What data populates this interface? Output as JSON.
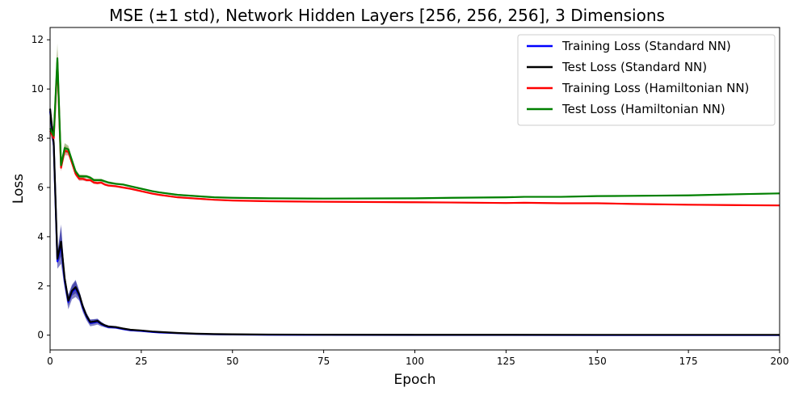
{
  "chart_data": {
    "type": "line",
    "title": "MSE (±1 std), Network Hidden Layers [256, 256, 256], 3 Dimensions",
    "xlabel": "Epoch",
    "ylabel": "Loss",
    "xlim": [
      0,
      200
    ],
    "ylim": [
      -0.6,
      12.5
    ],
    "xticks": [
      0,
      25,
      50,
      75,
      100,
      125,
      150,
      175,
      200
    ],
    "yticks": [
      0,
      2,
      4,
      6,
      8,
      10,
      12
    ],
    "grid": false,
    "legend_position": "top-right",
    "series": [
      {
        "name": "Training Loss (Standard NN)",
        "color": "#0000ff",
        "band_color": "#1f1f99",
        "points": [
          [
            0,
            9.1
          ],
          [
            1,
            7.7
          ],
          [
            2,
            3.0
          ],
          [
            3,
            3.7
          ],
          [
            4,
            2.2
          ],
          [
            5,
            1.35
          ],
          [
            6,
            1.75
          ],
          [
            7,
            1.9
          ],
          [
            8,
            1.6
          ],
          [
            9,
            1.1
          ],
          [
            10,
            0.75
          ],
          [
            11,
            0.5
          ],
          [
            12,
            0.52
          ],
          [
            13,
            0.55
          ],
          [
            14,
            0.45
          ],
          [
            15,
            0.38
          ],
          [
            16,
            0.33
          ],
          [
            18,
            0.31
          ],
          [
            20,
            0.25
          ],
          [
            22,
            0.2
          ],
          [
            25,
            0.17
          ],
          [
            28,
            0.13
          ],
          [
            30,
            0.11
          ],
          [
            35,
            0.08
          ],
          [
            40,
            0.05
          ],
          [
            45,
            0.035
          ],
          [
            50,
            0.025
          ],
          [
            60,
            0.015
          ],
          [
            75,
            0.01
          ],
          [
            100,
            0.006
          ],
          [
            125,
            0.005
          ],
          [
            150,
            0.004
          ],
          [
            175,
            0.004
          ],
          [
            200,
            0.004
          ]
        ],
        "std": [
          [
            0,
            0.3
          ],
          [
            2,
            0.3
          ],
          [
            3,
            0.8
          ],
          [
            4,
            0.3
          ],
          [
            6,
            0.3
          ],
          [
            7,
            0.35
          ],
          [
            8,
            0.2
          ],
          [
            10,
            0.15
          ],
          [
            13,
            0.12
          ],
          [
            15,
            0.06
          ],
          [
            20,
            0.04
          ],
          [
            30,
            0.02
          ],
          [
            50,
            0.01
          ],
          [
            200,
            0.005
          ]
        ]
      },
      {
        "name": "Test Loss (Standard NN)",
        "color": "#000000",
        "band_color": "#1f1f99",
        "points": [
          [
            0,
            9.2
          ],
          [
            1,
            7.8
          ],
          [
            2,
            3.1
          ],
          [
            3,
            3.8
          ],
          [
            4,
            2.3
          ],
          [
            5,
            1.4
          ],
          [
            6,
            1.8
          ],
          [
            7,
            1.95
          ],
          [
            8,
            1.65
          ],
          [
            9,
            1.15
          ],
          [
            10,
            0.78
          ],
          [
            11,
            0.53
          ],
          [
            12,
            0.55
          ],
          [
            13,
            0.58
          ],
          [
            14,
            0.47
          ],
          [
            15,
            0.4
          ],
          [
            16,
            0.35
          ],
          [
            18,
            0.33
          ],
          [
            20,
            0.27
          ],
          [
            22,
            0.22
          ],
          [
            25,
            0.19
          ],
          [
            28,
            0.15
          ],
          [
            30,
            0.13
          ],
          [
            35,
            0.09
          ],
          [
            40,
            0.06
          ],
          [
            45,
            0.045
          ],
          [
            50,
            0.035
          ],
          [
            60,
            0.025
          ],
          [
            75,
            0.02
          ],
          [
            100,
            0.015
          ],
          [
            125,
            0.015
          ],
          [
            150,
            0.014
          ],
          [
            175,
            0.014
          ],
          [
            200,
            0.014
          ]
        ],
        "std": [
          [
            0,
            0.2
          ],
          [
            2,
            0.2
          ],
          [
            3,
            0.6
          ],
          [
            4,
            0.2
          ],
          [
            6,
            0.2
          ],
          [
            7,
            0.25
          ],
          [
            8,
            0.15
          ],
          [
            10,
            0.1
          ],
          [
            13,
            0.08
          ],
          [
            15,
            0.05
          ],
          [
            20,
            0.03
          ],
          [
            30,
            0.02
          ],
          [
            50,
            0.01
          ],
          [
            200,
            0.005
          ]
        ]
      },
      {
        "name": "Training Loss (Hamiltonian NN)",
        "color": "#ff0000",
        "band_color": "#cc6666",
        "points": [
          [
            0,
            8.3
          ],
          [
            1,
            8.0
          ],
          [
            2,
            11.1
          ],
          [
            3,
            6.8
          ],
          [
            4,
            7.5
          ],
          [
            5,
            7.45
          ],
          [
            6,
            7.0
          ],
          [
            7,
            6.55
          ],
          [
            8,
            6.35
          ],
          [
            9,
            6.35
          ],
          [
            10,
            6.3
          ],
          [
            11,
            6.3
          ],
          [
            12,
            6.2
          ],
          [
            13,
            6.18
          ],
          [
            14,
            6.2
          ],
          [
            15,
            6.12
          ],
          [
            16,
            6.08
          ],
          [
            18,
            6.05
          ],
          [
            20,
            6.0
          ],
          [
            22,
            5.95
          ],
          [
            25,
            5.85
          ],
          [
            28,
            5.75
          ],
          [
            30,
            5.7
          ],
          [
            35,
            5.6
          ],
          [
            40,
            5.55
          ],
          [
            45,
            5.5
          ],
          [
            50,
            5.47
          ],
          [
            60,
            5.44
          ],
          [
            75,
            5.42
          ],
          [
            100,
            5.4
          ],
          [
            110,
            5.39
          ],
          [
            125,
            5.37
          ],
          [
            130,
            5.38
          ],
          [
            140,
            5.36
          ],
          [
            150,
            5.36
          ],
          [
            160,
            5.33
          ],
          [
            175,
            5.3
          ],
          [
            190,
            5.28
          ],
          [
            200,
            5.27
          ]
        ],
        "std": [
          [
            0,
            0.15
          ],
          [
            2,
            0.5
          ],
          [
            3,
            0.15
          ],
          [
            4,
            0.2
          ],
          [
            6,
            0.1
          ],
          [
            10,
            0.06
          ],
          [
            20,
            0.04
          ],
          [
            50,
            0.03
          ],
          [
            200,
            0.03
          ]
        ]
      },
      {
        "name": "Test Loss (Hamiltonian NN)",
        "color": "#008000",
        "band_color": "#6b8f3a",
        "points": [
          [
            0,
            8.4
          ],
          [
            1,
            8.1
          ],
          [
            2,
            11.25
          ],
          [
            3,
            6.9
          ],
          [
            4,
            7.6
          ],
          [
            5,
            7.55
          ],
          [
            6,
            7.1
          ],
          [
            7,
            6.65
          ],
          [
            8,
            6.45
          ],
          [
            9,
            6.45
          ],
          [
            10,
            6.45
          ],
          [
            11,
            6.4
          ],
          [
            12,
            6.3
          ],
          [
            13,
            6.3
          ],
          [
            14,
            6.3
          ],
          [
            15,
            6.25
          ],
          [
            16,
            6.2
          ],
          [
            18,
            6.15
          ],
          [
            20,
            6.12
          ],
          [
            22,
            6.05
          ],
          [
            25,
            5.95
          ],
          [
            28,
            5.85
          ],
          [
            30,
            5.8
          ],
          [
            35,
            5.7
          ],
          [
            40,
            5.65
          ],
          [
            45,
            5.6
          ],
          [
            50,
            5.58
          ],
          [
            60,
            5.56
          ],
          [
            75,
            5.55
          ],
          [
            100,
            5.56
          ],
          [
            110,
            5.58
          ],
          [
            125,
            5.6
          ],
          [
            130,
            5.62
          ],
          [
            140,
            5.62
          ],
          [
            150,
            5.65
          ],
          [
            160,
            5.66
          ],
          [
            175,
            5.68
          ],
          [
            190,
            5.73
          ],
          [
            200,
            5.76
          ]
        ],
        "std": [
          [
            0,
            0.15
          ],
          [
            2,
            0.6
          ],
          [
            3,
            0.15
          ],
          [
            4,
            0.2
          ],
          [
            6,
            0.1
          ],
          [
            10,
            0.06
          ],
          [
            20,
            0.04
          ],
          [
            50,
            0.03
          ],
          [
            200,
            0.03
          ]
        ]
      }
    ]
  }
}
